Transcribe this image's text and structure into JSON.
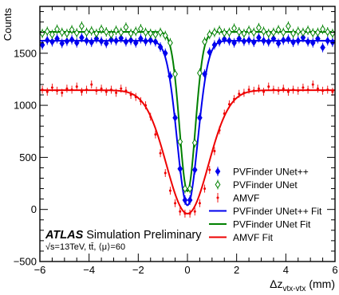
{
  "chart_data": {
    "type": "scatter",
    "ylabel": "Counts",
    "xlabel": {
      "main": "Δz",
      "sub": "vtx-vtx",
      "unit": "(mm)"
    },
    "xlim": [
      -6,
      6
    ],
    "ylim": [
      -500,
      1950
    ],
    "xticks": [
      -6,
      -4,
      -2,
      0,
      2,
      4,
      6
    ],
    "yticks": [
      -500,
      0,
      500,
      1000,
      1500
    ],
    "grid": false,
    "legend_position": "bottom-right",
    "annotation": {
      "atlas": "ATLAS",
      "label": "Simulation Preliminary",
      "conditions": "√s=13TeV, tt̄, ⟨μ⟩=60"
    },
    "series": [
      {
        "name": "PVFinder UNet++",
        "kind": "points",
        "marker": "filled-diamond",
        "color": "#0000ee",
        "x": [
          -5.9,
          -5.7,
          -5.5,
          -5.3,
          -5.1,
          -4.9,
          -4.7,
          -4.5,
          -4.3,
          -4.1,
          -3.9,
          -3.7,
          -3.5,
          -3.3,
          -3.1,
          -2.9,
          -2.7,
          -2.5,
          -2.3,
          -2.1,
          -1.9,
          -1.7,
          -1.5,
          -1.3,
          -1.1,
          -0.9,
          -0.7,
          -0.5,
          -0.3,
          -0.1,
          0.1,
          0.3,
          0.5,
          0.7,
          0.9,
          1.1,
          1.3,
          1.5,
          1.7,
          1.9,
          2.1,
          2.3,
          2.5,
          2.7,
          2.9,
          3.1,
          3.3,
          3.5,
          3.7,
          3.9,
          4.1,
          4.3,
          4.5,
          4.7,
          4.9,
          5.1,
          5.3,
          5.5,
          5.7,
          5.9
        ],
        "y": [
          1580,
          1625,
          1610,
          1640,
          1595,
          1615,
          1630,
          1600,
          1650,
          1620,
          1605,
          1640,
          1615,
          1595,
          1630,
          1620,
          1645,
          1610,
          1625,
          1600,
          1640,
          1615,
          1625,
          1610,
          1560,
          1500,
          1280,
          880,
          390,
          90,
          90,
          380,
          880,
          1300,
          1510,
          1580,
          1610,
          1635,
          1620,
          1600,
          1640,
          1615,
          1625,
          1605,
          1650,
          1620,
          1610,
          1640,
          1595,
          1625,
          1635,
          1605,
          1620,
          1650,
          1610,
          1600,
          1640,
          1555,
          1620,
          1605
        ]
      },
      {
        "name": "PVFinder UNet",
        "kind": "points",
        "marker": "open-diamond",
        "color": "#008000",
        "x": [
          -5.9,
          -5.7,
          -5.5,
          -5.3,
          -5.1,
          -4.9,
          -4.7,
          -4.5,
          -4.3,
          -4.1,
          -3.9,
          -3.7,
          -3.5,
          -3.3,
          -3.1,
          -2.9,
          -2.7,
          -2.5,
          -2.3,
          -2.1,
          -1.9,
          -1.7,
          -1.5,
          -1.3,
          -1.1,
          -0.9,
          -0.7,
          -0.5,
          -0.3,
          -0.1,
          0.1,
          0.3,
          0.5,
          0.7,
          0.9,
          1.1,
          1.3,
          1.5,
          1.7,
          1.9,
          2.1,
          2.3,
          2.5,
          2.7,
          2.9,
          3.1,
          3.3,
          3.5,
          3.7,
          3.9,
          4.1,
          4.3,
          4.5,
          4.7,
          4.9,
          5.1,
          5.3,
          5.5,
          5.7,
          5.9
        ],
        "y": [
          1690,
          1710,
          1680,
          1730,
          1700,
          1690,
          1725,
          1695,
          1760,
          1700,
          1715,
          1690,
          1730,
          1705,
          1680,
          1720,
          1700,
          1750,
          1690,
          1710,
          1735,
          1700,
          1690,
          1680,
          1700,
          1670,
          1600,
          1300,
          650,
          200,
          200,
          640,
          1310,
          1610,
          1680,
          1700,
          1720,
          1695,
          1700,
          1740,
          1705,
          1690,
          1720,
          1700,
          1745,
          1710,
          1690,
          1700,
          1725,
          1700,
          1760,
          1690,
          1710,
          1700,
          1720,
          1695,
          1700,
          1730,
          1705,
          1690
        ]
      },
      {
        "name": "AMVF",
        "kind": "points",
        "marker": "dot",
        "color": "#ee0000",
        "x": [
          -5.9,
          -5.7,
          -5.5,
          -5.3,
          -5.1,
          -4.9,
          -4.7,
          -4.5,
          -4.3,
          -4.1,
          -3.9,
          -3.7,
          -3.5,
          -3.3,
          -3.1,
          -2.9,
          -2.7,
          -2.5,
          -2.3,
          -2.1,
          -1.9,
          -1.7,
          -1.5,
          -1.3,
          -1.1,
          -0.9,
          -0.7,
          -0.5,
          -0.3,
          -0.1,
          0.1,
          0.3,
          0.5,
          0.7,
          0.9,
          1.1,
          1.3,
          1.5,
          1.7,
          1.9,
          2.1,
          2.3,
          2.5,
          2.7,
          2.9,
          3.1,
          3.3,
          3.5,
          3.7,
          3.9,
          4.1,
          4.3,
          4.5,
          4.7,
          4.9,
          5.1,
          5.3,
          5.5,
          5.7,
          5.9
        ],
        "y": [
          1150,
          1130,
          1170,
          1140,
          1120,
          1160,
          1150,
          1180,
          1130,
          1150,
          1200,
          1140,
          1160,
          1130,
          1150,
          1120,
          1160,
          1140,
          1100,
          1080,
          1040,
          1000,
          890,
          720,
          540,
          350,
          180,
          60,
          -20,
          -40,
          -40,
          -20,
          60,
          200,
          380,
          560,
          760,
          920,
          1010,
          1060,
          1110,
          1120,
          1150,
          1140,
          1160,
          1130,
          1180,
          1150,
          1140,
          1160,
          1130,
          1150,
          1140,
          1170,
          1150,
          1200,
          1160,
          1140,
          1150,
          1130
        ]
      },
      {
        "name": "PVFinder UNet++ Fit",
        "kind": "fit",
        "color": "#0000ee",
        "plateau": 1620,
        "depth": 1580,
        "sigma": 0.42
      },
      {
        "name": "PVFinder UNet Fit",
        "kind": "fit",
        "color": "#008000",
        "plateau": 1705,
        "depth": 1530,
        "sigma": 0.32
      },
      {
        "name": "AMVF Fit",
        "kind": "fit",
        "color": "#ee0000",
        "plateau": 1145,
        "depth": 1185,
        "sigma": 0.85
      }
    ]
  }
}
